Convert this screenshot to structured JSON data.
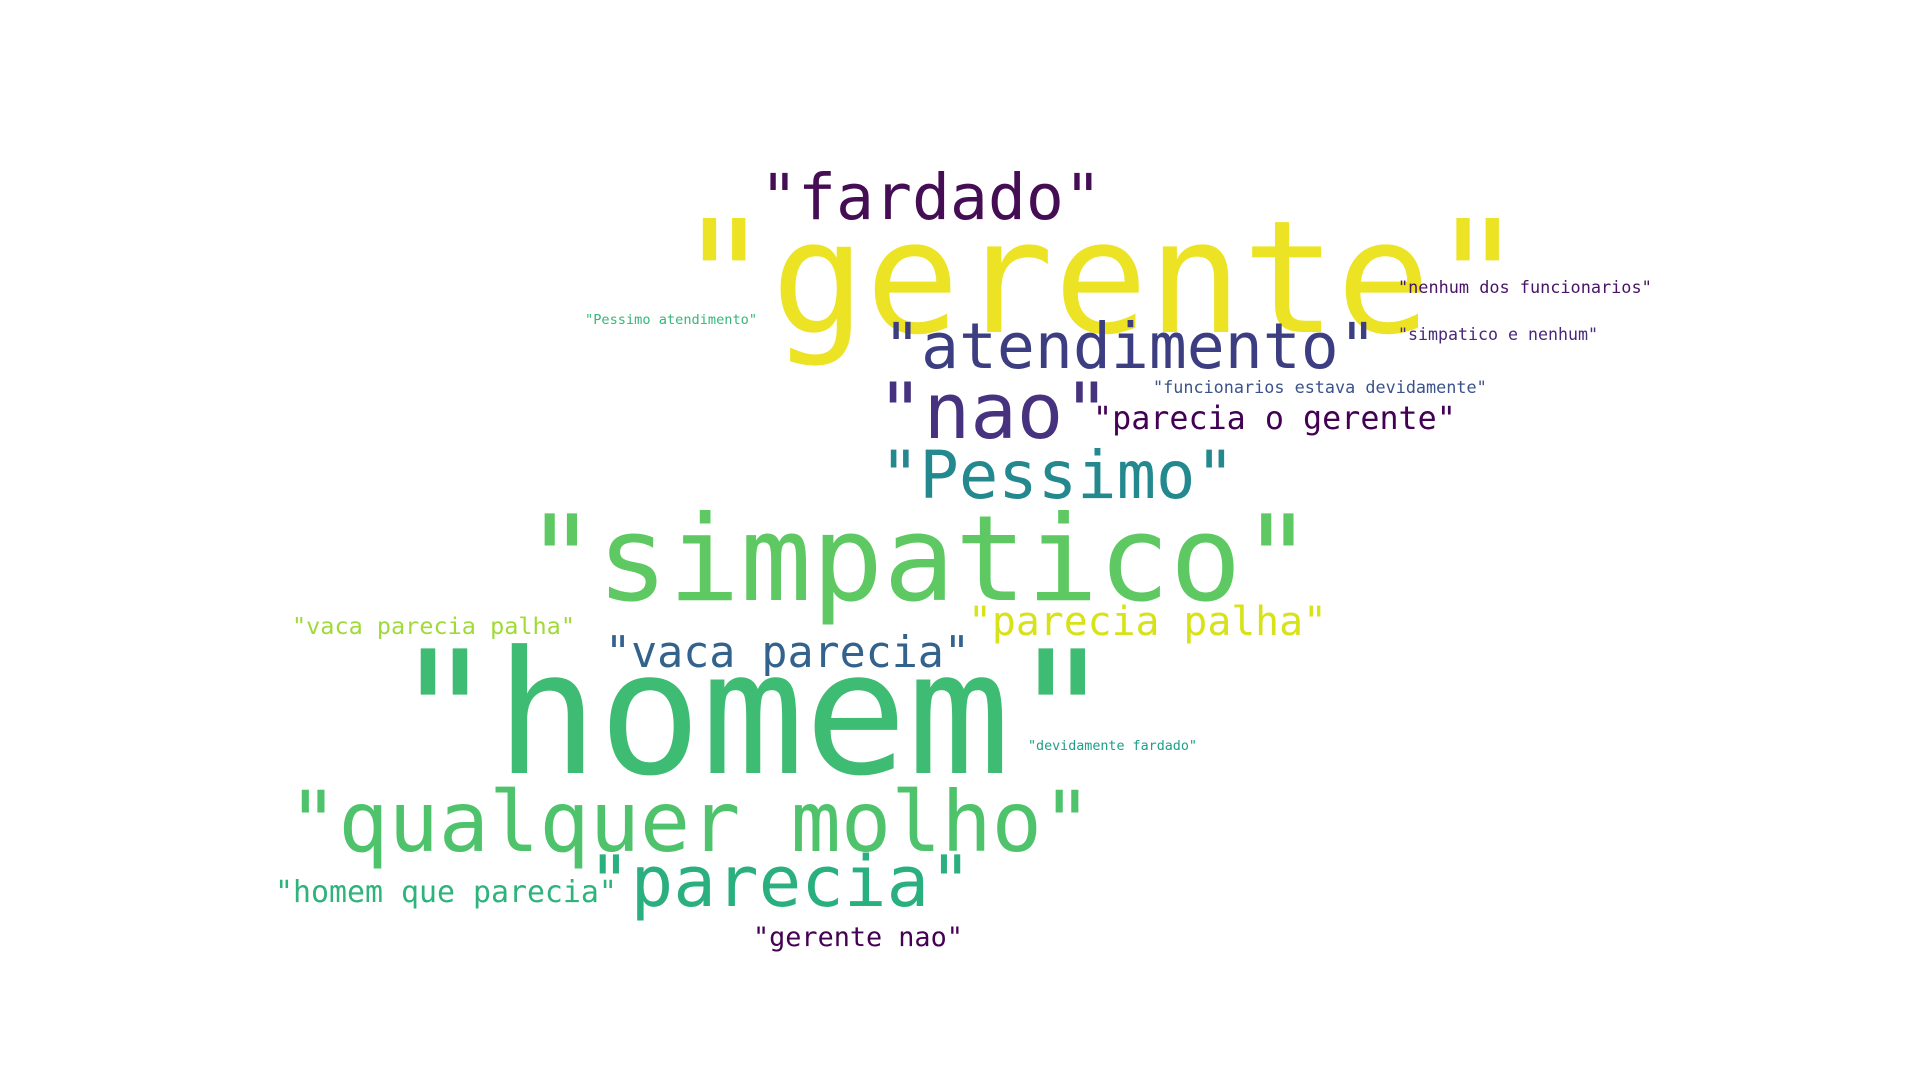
{
  "words": [
    {
      "id": "w-gerente",
      "text": "\"gerente\"",
      "color": "#ece324"
    },
    {
      "id": "w-homem",
      "text": "\"homem\"",
      "color": "#3fbc73"
    },
    {
      "id": "w-simpatico",
      "text": "\"simpatico\"",
      "color": "#5ec962"
    },
    {
      "id": "w-fardado",
      "text": "\"fardado\"",
      "color": "#440d54"
    },
    {
      "id": "w-atendimento",
      "text": "\"atendimento\"",
      "color": "#3d3d82"
    },
    {
      "id": "w-nao",
      "text": "\"nao\"",
      "color": "#46327e"
    },
    {
      "id": "w-pessimo",
      "text": "\"Pessimo\"",
      "color": "#23898e"
    },
    {
      "id": "w-parecia-o-gerente",
      "text": "\"parecia o gerente\"",
      "color": "#440154"
    },
    {
      "id": "w-qualquer-molho",
      "text": "\"qualquer molho\"",
      "color": "#4ec36b"
    },
    {
      "id": "w-parecia",
      "text": "\"parecia\"",
      "color": "#2ab07f"
    },
    {
      "id": "w-vaca-parecia",
      "text": "\"vaca parecia\"",
      "color": "#33638d"
    },
    {
      "id": "w-parecia-palha",
      "text": "\"parecia palha\"",
      "color": "#d8e219"
    },
    {
      "id": "w-vaca-parecia-palha",
      "text": "\"vaca parecia palha\"",
      "color": "#a0da39"
    },
    {
      "id": "w-homem-que-parecia",
      "text": "\"homem que parecia\"",
      "color": "#2eb37c"
    },
    {
      "id": "w-gerente-nao",
      "text": "\"gerente nao\"",
      "color": "#440154"
    },
    {
      "id": "w-nenhum-dos-funcionarios",
      "text": "\"nenhum dos funcionarios\"",
      "color": "#481467"
    },
    {
      "id": "w-simpatico-e-nenhum",
      "text": "\"simpatico e nenhum\"",
      "color": "#482878"
    },
    {
      "id": "w-funcionarios-estava-devidamente",
      "text": "\"funcionarios estava devidamente\"",
      "color": "#3b528b"
    },
    {
      "id": "w-pessimo-atendimento",
      "text": "\"Pessimo atendimento\"",
      "color": "#35b779"
    },
    {
      "id": "w-devidamente-fardado",
      "text": "\"devidamente fardado\"",
      "color": "#1f9e89"
    }
  ]
}
